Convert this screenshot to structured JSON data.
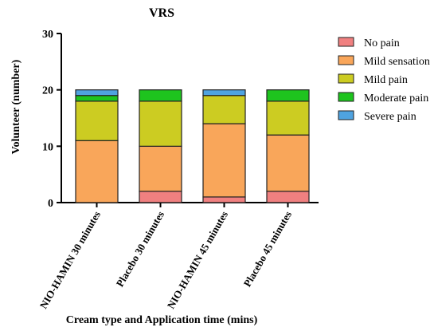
{
  "chart_data": {
    "type": "bar",
    "stacked": true,
    "title": "VRS",
    "xlabel": "Cream type and Application time (mins)",
    "ylabel": "Volunteer (number)",
    "ylim": [
      0,
      30
    ],
    "yticks": [
      0,
      10,
      20,
      30
    ],
    "categories": [
      "NIO-HAMIN 30 minutes",
      "Placebo 30 minutes",
      "NIO-HAMIN 45 minutes",
      "Placebo 45 minutes"
    ],
    "series": [
      {
        "name": "No pain",
        "color": "#f08080",
        "values": [
          0,
          2,
          1,
          2
        ]
      },
      {
        "name": "Mild sensation",
        "color": "#f9a65a",
        "values": [
          11,
          8,
          13,
          10
        ]
      },
      {
        "name": "Mild pain",
        "color": "#cccc22",
        "values": [
          7,
          8,
          5,
          6
        ]
      },
      {
        "name": "Moderate pain",
        "color": "#1ec41e",
        "values": [
          1,
          2,
          0,
          2
        ]
      },
      {
        "name": "Severe pain",
        "color": "#4fa3e0",
        "values": [
          1,
          0,
          1,
          0
        ]
      }
    ],
    "legend_position": "right",
    "grid": false
  }
}
